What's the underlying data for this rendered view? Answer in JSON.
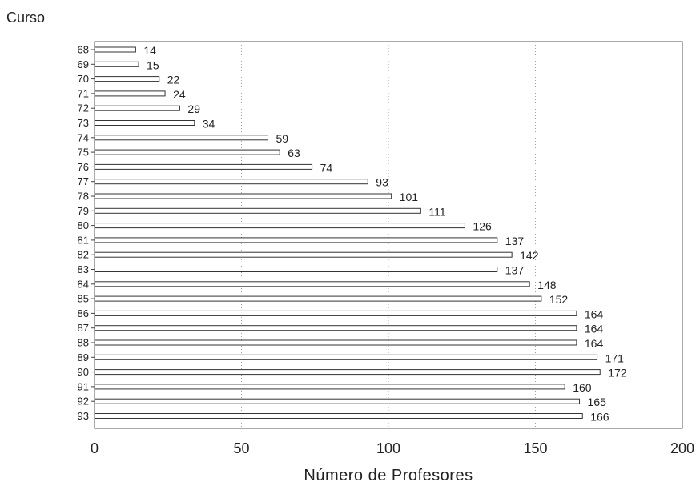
{
  "chart_data": {
    "type": "bar",
    "orientation": "horizontal",
    "title": "",
    "ylabel": "Curso",
    "xlabel": "Número de Profesores",
    "xlim": [
      0,
      200
    ],
    "xticks": [
      0,
      50,
      100,
      150,
      200
    ],
    "grid": true,
    "categories": [
      "68",
      "69",
      "70",
      "71",
      "72",
      "73",
      "74",
      "75",
      "76",
      "77",
      "78",
      "79",
      "80",
      "81",
      "82",
      "83",
      "84",
      "85",
      "86",
      "87",
      "88",
      "89",
      "90",
      "91",
      "92",
      "93"
    ],
    "values": [
      14,
      15,
      22,
      24,
      29,
      34,
      59,
      63,
      74,
      93,
      101,
      111,
      126,
      137,
      142,
      137,
      148,
      152,
      164,
      164,
      164,
      171,
      172,
      160,
      165,
      166
    ]
  }
}
